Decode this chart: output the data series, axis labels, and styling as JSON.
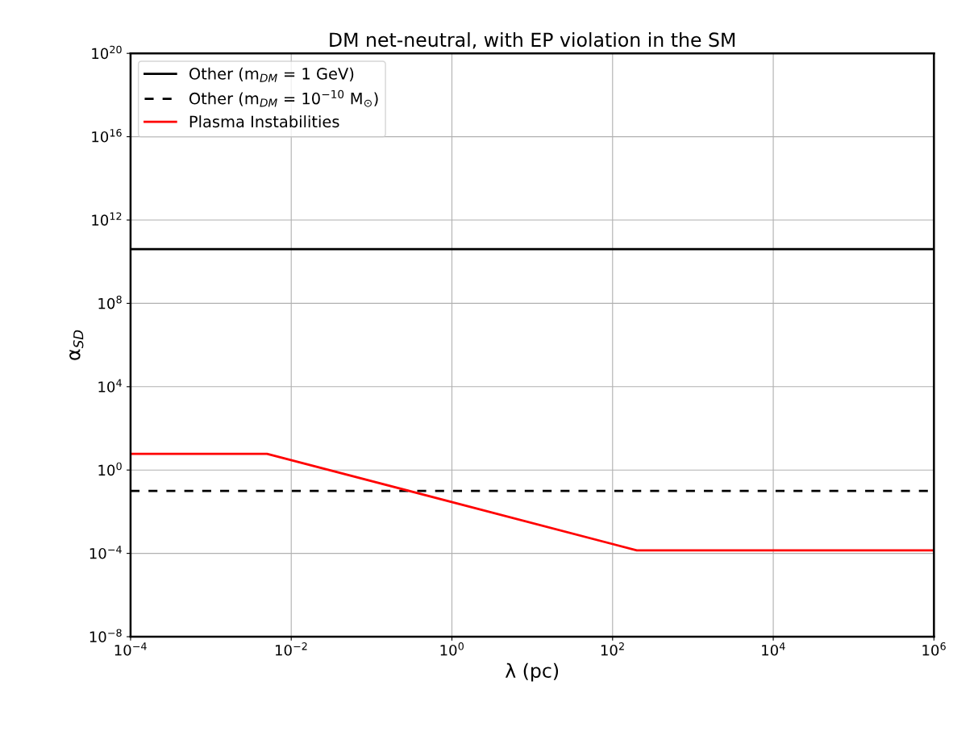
{
  "chart_data": {
    "type": "line",
    "title": "DM net-neutral, with EP violation in the SM",
    "xlabel": "λ (pc)",
    "ylabel": "α$_{SD}$",
    "log": "xy",
    "grid": true,
    "legend": "top left",
    "marker": "none",
    "xlim": [
      0.0001,
      1000000
    ],
    "ylim": [
      1e-08,
      1e+20
    ],
    "xticks": [
      {
        "value": 0.0001,
        "label": "10$^{−4}$"
      },
      {
        "value": 0.01,
        "label": "10$^{−2}$"
      },
      {
        "value": 1,
        "label": "10$^{0}$"
      },
      {
        "value": 100,
        "label": "10$^{2}$"
      },
      {
        "value": 10000,
        "label": "10$^{4}$"
      },
      {
        "value": 1000000,
        "label": "10$^{6}$"
      }
    ],
    "yticks": [
      {
        "value": 1e-08,
        "label": "10$^{−8}$"
      },
      {
        "value": 0.0001,
        "label": "10$^{−4}$"
      },
      {
        "value": 1,
        "label": "10$^{0}$"
      },
      {
        "value": 10000,
        "label": "10$^{4}$"
      },
      {
        "value": 100000000.0,
        "label": "10$^{8}$"
      },
      {
        "value": 1000000000000.0,
        "label": "10$^{12}$"
      },
      {
        "value": 1e+16,
        "label": "10$^{16}$"
      },
      {
        "value": 1e+20,
        "label": "10$^{20}$"
      }
    ],
    "series": [
      {
        "name": "Other (m$_{DM}$ = 1 GeV)",
        "color": "#000000",
        "line_style": "solid",
        "x": [
          0.0001,
          1000000
        ],
        "values": [
          40000000000.0,
          40000000000.0
        ]
      },
      {
        "name": "Other (m$_{DM}$ = 10$^{−10}$ M$_{⊙}$)",
        "color": "#000000",
        "line_style": "dashed",
        "x": [
          0.0001,
          1000000
        ],
        "values": [
          0.1,
          0.1
        ]
      },
      {
        "name": "Plasma Instabilities",
        "color": "#ff0000",
        "line_style": "solid",
        "x": [
          0.0001,
          0.005,
          200,
          1000000
        ],
        "values": [
          6,
          6,
          0.00014,
          0.00014
        ]
      }
    ]
  }
}
